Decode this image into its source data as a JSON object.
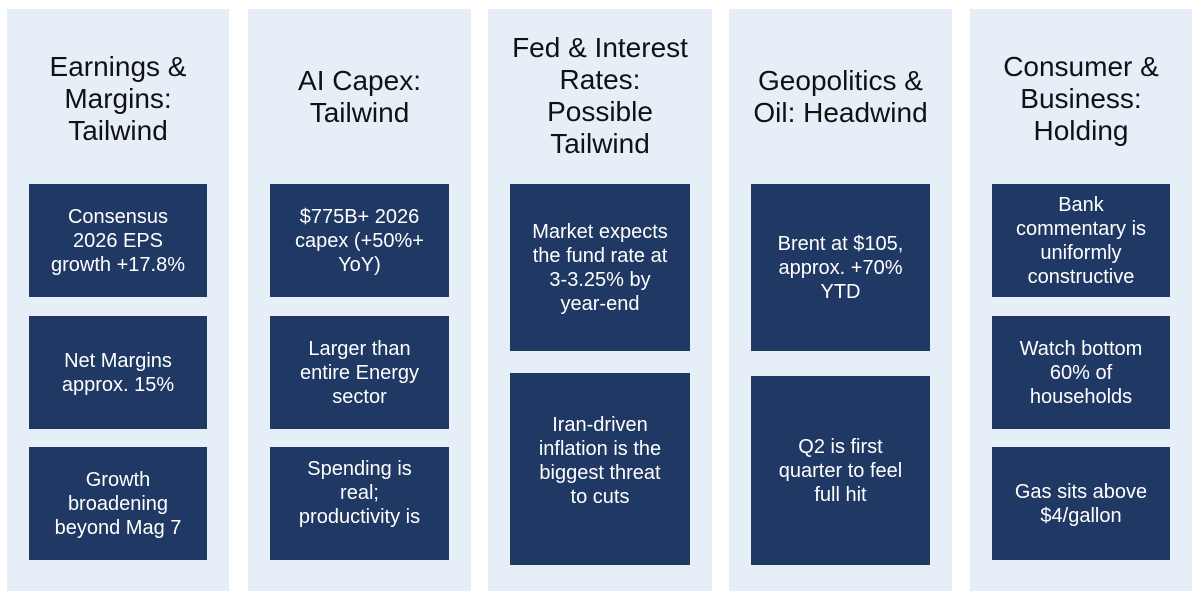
{
  "columns": [
    {
      "title_lines": [
        "Earnings &",
        "Margins:",
        "Tailwind"
      ],
      "cards": [
        [
          "Consensus",
          "2026 EPS",
          "growth +17.8%"
        ],
        [
          "Net Margins",
          "approx. 15%"
        ],
        [
          "Growth",
          "broadening",
          "beyond Mag 7"
        ]
      ]
    },
    {
      "title_lines": [
        "AI Capex:",
        "Tailwind"
      ],
      "cards": [
        [
          "$775B+ 2026",
          "capex (+50%+",
          "YoY)"
        ],
        [
          "Larger than",
          "entire Energy",
          "sector"
        ],
        [
          "Spending is",
          "real;",
          "productivity is"
        ]
      ]
    },
    {
      "title_lines": [
        "Fed & Interest",
        "Rates:",
        "Possible",
        "Tailwind"
      ],
      "cards": [
        [
          "Market expects",
          "the fund rate at",
          "3-3.25% by",
          "year-end"
        ],
        [
          "Iran-driven",
          "inflation is the",
          "biggest threat",
          "to cuts"
        ]
      ]
    },
    {
      "title_lines": [
        "Geopolitics &",
        "Oil: Headwind"
      ],
      "cards": [
        [
          "Brent at $105,",
          "approx. +70%",
          "YTD"
        ],
        [
          "Q2 is first",
          "quarter to feel",
          "full hit"
        ]
      ]
    },
    {
      "title_lines": [
        "Consumer &",
        "Business:",
        "Holding"
      ],
      "cards": [
        [
          "Bank",
          "commentary is",
          "uniformly",
          "constructive"
        ],
        [
          "Watch bottom",
          "60% of",
          "households"
        ],
        [
          "Gas sits above",
          "$4/gallon"
        ]
      ]
    }
  ]
}
